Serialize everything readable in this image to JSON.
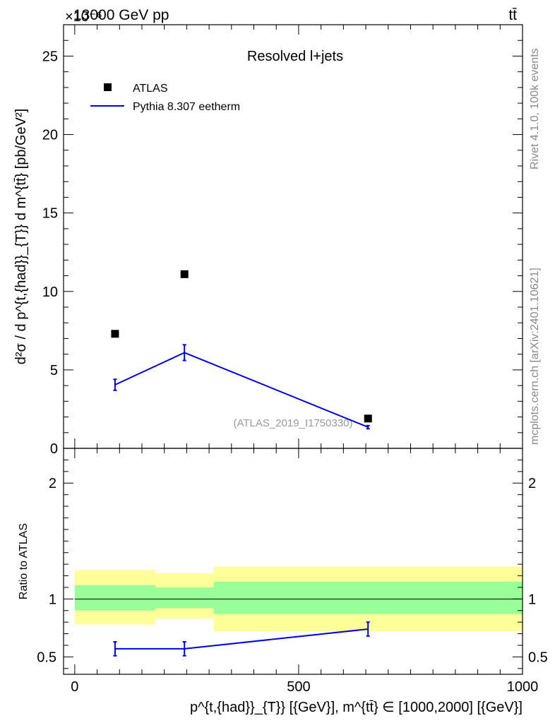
{
  "header": {
    "energy_label": "13000 GeV pp",
    "process_label": "tt̄",
    "exponent_label": "×10⁻⁶"
  },
  "side_labels": {
    "rivet": "Rivet 4.1.0,  100k events",
    "mcplots": "mcplots.cern.ch [arXiv:2401.10621]"
  },
  "colors": {
    "data": "#000000",
    "mc": "#0000dd",
    "band_inner": "#99ff99",
    "band_outer": "#ffff99",
    "watermark": "#999999",
    "side_text": "#888888"
  },
  "chart_data": [
    {
      "type": "scatter",
      "title": "Resolved l+jets",
      "analysis_id": "(ATLAS_2019_I1750330)",
      "xlabel": "p^{t,{had}}_{T}} [{GeV}], m^{tt̄} ∈ [1000,2000] [{GeV}]",
      "ylabel": "d²σ / d p^{t,{had}}_{T}} d m^{tt̄} [pb/GeV²]",
      "y_scale": "1e-6",
      "xlim": [
        -25,
        1000
      ],
      "ylim": [
        0,
        27
      ],
      "yticks": [
        0,
        5,
        10,
        15,
        20,
        25
      ],
      "xticks": [
        0,
        500,
        1000
      ],
      "legend_position": "top-left",
      "series": [
        {
          "name": "ATLAS",
          "kind": "markers",
          "x": [
            90,
            245,
            655
          ],
          "y": [
            7.3,
            11.1,
            1.9
          ]
        },
        {
          "name": "Pythia 8.307 eetherm",
          "kind": "line",
          "x": [
            90,
            245,
            655
          ],
          "y": [
            4.05,
            6.1,
            1.35
          ],
          "yerr": [
            0.35,
            0.5,
            0.1
          ]
        }
      ]
    },
    {
      "type": "line",
      "ylabel": "Ratio to ATLAS",
      "xlim": [
        -25,
        1000
      ],
      "ylim": [
        0.35,
        2.3
      ],
      "yticks": [
        0.5,
        1,
        2
      ],
      "xticks": [
        0,
        500,
        1000
      ],
      "bins": [
        {
          "x0": 0,
          "x1": 180,
          "inner_lo": 0.9,
          "inner_hi": 1.12,
          "outer_lo": 0.78,
          "outer_hi": 1.25
        },
        {
          "x0": 180,
          "x1": 310,
          "inner_lo": 0.92,
          "inner_hi": 1.1,
          "outer_lo": 0.83,
          "outer_hi": 1.22
        },
        {
          "x0": 310,
          "x1": 1000,
          "inner_lo": 0.87,
          "inner_hi": 1.15,
          "outer_lo": 0.72,
          "outer_hi": 1.28
        }
      ],
      "mc_ratio": {
        "name": "Pythia 8.307 eetherm",
        "x": [
          90,
          245,
          655
        ],
        "y": [
          0.57,
          0.57,
          0.74
        ],
        "yerr": [
          0.06,
          0.06,
          0.06
        ]
      }
    }
  ]
}
